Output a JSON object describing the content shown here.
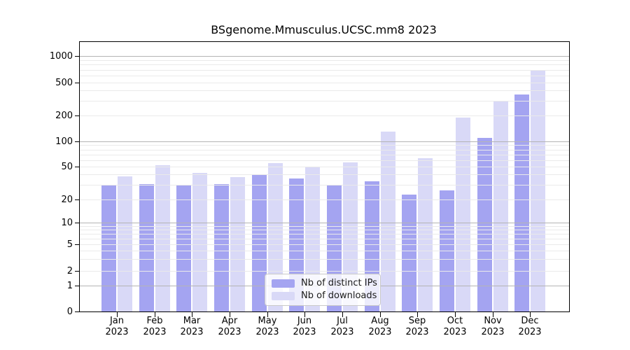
{
  "title": "BSgenome.Mmusculus.UCSC.mm8 2023",
  "colors": {
    "distinct_ips_bar": "#a4a4f1",
    "downloads_bar": "#d9d9f7",
    "grid_major": "#b4b4b4",
    "grid_minor": "#eaeaea",
    "spine": "#000000"
  },
  "legend": {
    "items": [
      {
        "label": "Nb of distinct IPs",
        "color": "#a4a4f1"
      },
      {
        "label": "Nb of downloads",
        "color": "#d9d9f7"
      }
    ]
  },
  "chart_data": {
    "type": "bar",
    "title": "BSgenome.Mmusculus.UCSC.mm8 2023",
    "categories": [
      "Jan 2023",
      "Feb 2023",
      "Mar 2023",
      "Apr 2023",
      "May 2023",
      "Jun 2023",
      "Jul 2023",
      "Aug 2023",
      "Sep 2023",
      "Oct 2023",
      "Nov 2023",
      "Dec 2023"
    ],
    "series": [
      {
        "name": "Nb of distinct IPs",
        "color": "#a4a4f1",
        "values": [
          30,
          31,
          30,
          31,
          40,
          36,
          30,
          33,
          23,
          26,
          110,
          360
        ]
      },
      {
        "name": "Nb of downloads",
        "color": "#d9d9f7",
        "values": [
          38,
          52,
          42,
          37,
          55,
          50,
          56,
          130,
          63,
          190,
          300,
          680
        ]
      }
    ],
    "xlabel": "",
    "ylabel": "",
    "y_scale": "log-like (0 baseline, log above 1)",
    "y_ticks": [
      0,
      1,
      2,
      5,
      10,
      20,
      50,
      100,
      200,
      500,
      1000
    ],
    "y_gridlines_major": [
      1,
      10,
      100,
      1000
    ],
    "y_gridlines_minor": [
      2,
      3,
      4,
      5,
      6,
      7,
      8,
      9,
      20,
      30,
      40,
      50,
      60,
      70,
      80,
      90,
      200,
      300,
      400,
      500,
      600,
      700,
      800,
      900
    ],
    "ylim": [
      0,
      1400
    ],
    "grid": true,
    "legend_position": "inside bottom-center"
  }
}
